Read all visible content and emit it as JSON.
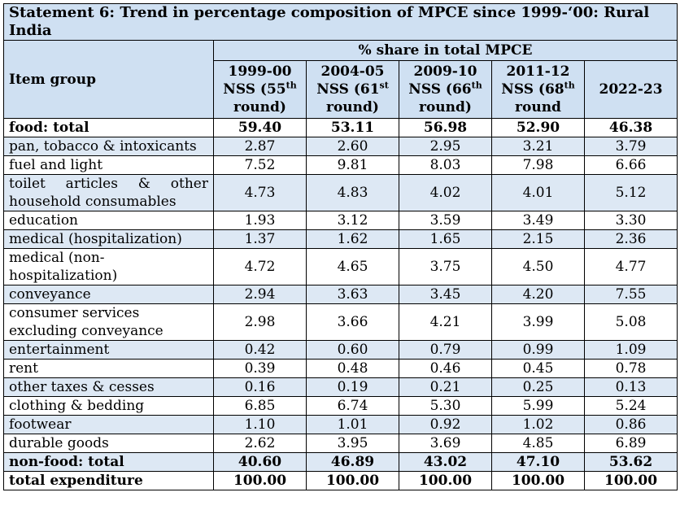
{
  "title": "Statement 6: Trend in percentage composition of MPCE since 1999-‘00: Rural India",
  "header": {
    "item_group": "Item group",
    "share": "% share in total MPCE",
    "columns": [
      {
        "year": "1999-00",
        "nss": "NSS (55",
        "sup": "th",
        "round": "round)"
      },
      {
        "year": "2004-05",
        "nss": "NSS (61",
        "sup": "st",
        "round": "round)"
      },
      {
        "year": "2009-10",
        "nss": "NSS (66",
        "sup": "th",
        "round": "round)"
      },
      {
        "year": "2011-12",
        "nss": "NSS (68",
        "sup": "th",
        "round": "round"
      },
      {
        "year": "2022-23",
        "nss": "",
        "sup": "",
        "round": ""
      }
    ]
  },
  "rows": [
    {
      "item": "food: total",
      "values": [
        "59.40",
        "53.11",
        "56.98",
        "52.90",
        "46.38"
      ]
    },
    {
      "item": "pan, tobacco & intoxicants",
      "values": [
        "2.87",
        "2.60",
        "2.95",
        "3.21",
        "3.79"
      ]
    },
    {
      "item": "fuel and light",
      "values": [
        "7.52",
        "9.81",
        "8.03",
        "7.98",
        "6.66"
      ]
    },
    {
      "item": "toilet articles & other household consumables",
      "values": [
        "4.73",
        "4.83",
        "4.02",
        "4.01",
        "5.12"
      ]
    },
    {
      "item": "education",
      "values": [
        "1.93",
        "3.12",
        "3.59",
        "3.49",
        "3.30"
      ]
    },
    {
      "item": "medical (hospitalization)",
      "values": [
        "1.37",
        "1.62",
        "1.65",
        "2.15",
        "2.36"
      ]
    },
    {
      "item": "medical (non-hospitalization)",
      "values": [
        "4.72",
        "4.65",
        "3.75",
        "4.50",
        "4.77"
      ]
    },
    {
      "item": "conveyance",
      "values": [
        "2.94",
        "3.63",
        "3.45",
        "4.20",
        "7.55"
      ]
    },
    {
      "item": "consumer services excluding conveyance",
      "values": [
        "2.98",
        "3.66",
        "4.21",
        "3.99",
        "5.08"
      ]
    },
    {
      "item": "entertainment",
      "values": [
        "0.42",
        "0.60",
        "0.79",
        "0.99",
        "1.09"
      ]
    },
    {
      "item": "rent",
      "values": [
        "0.39",
        "0.48",
        "0.46",
        "0.45",
        "0.78"
      ]
    },
    {
      "item": "other taxes & cesses",
      "values": [
        "0.16",
        "0.19",
        "0.21",
        "0.25",
        "0.13"
      ]
    },
    {
      "item": "clothing & bedding",
      "values": [
        "6.85",
        "6.74",
        "5.30",
        "5.99",
        "5.24"
      ]
    },
    {
      "item": "footwear",
      "values": [
        "1.10",
        "1.01",
        "0.92",
        "1.02",
        "0.86"
      ]
    },
    {
      "item": "durable goods",
      "values": [
        "2.62",
        "3.95",
        "3.69",
        "4.85",
        "6.89"
      ]
    },
    {
      "item": "non-food: total",
      "values": [
        "40.60",
        "46.89",
        "43.02",
        "47.10",
        "53.62"
      ]
    },
    {
      "item": "total expenditure",
      "values": [
        "100.00",
        "100.00",
        "100.00",
        "100.00",
        "100.00"
      ]
    }
  ],
  "colors": {
    "header_bg": "#cfe0f2",
    "alt_row_bg": "#dde8f4"
  }
}
